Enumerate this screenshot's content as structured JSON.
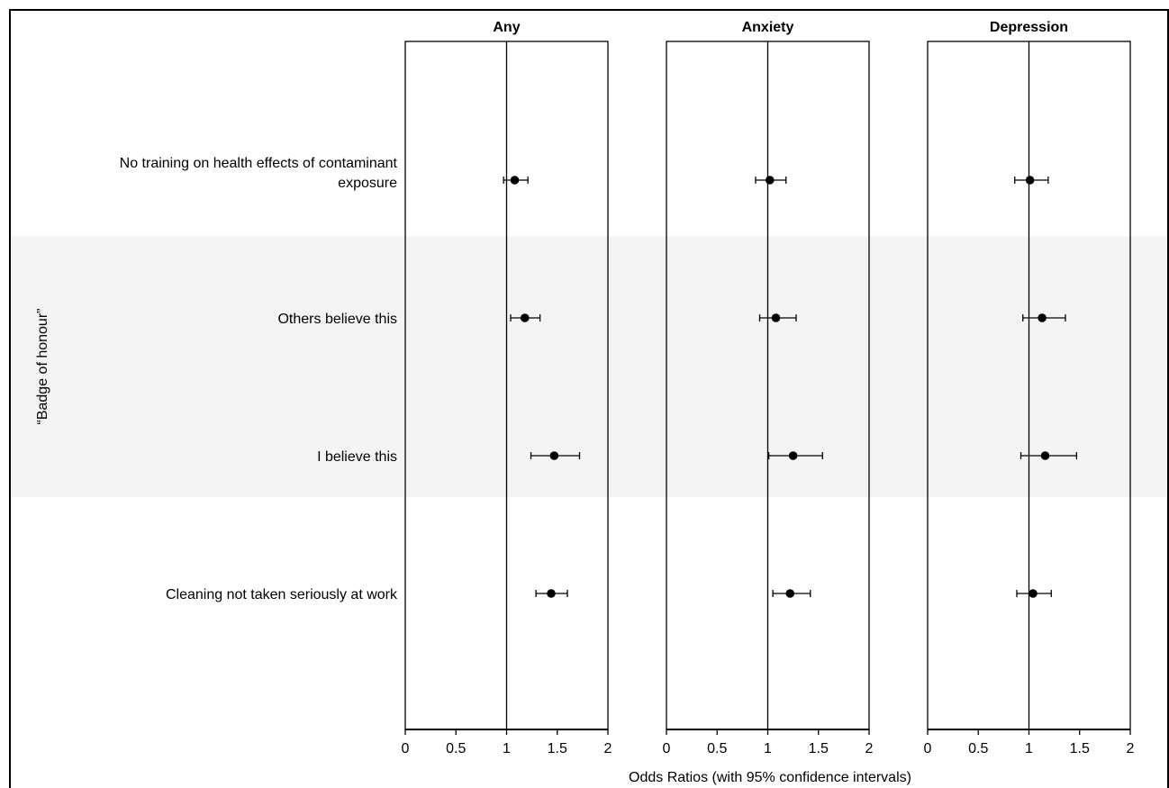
{
  "chart_data": {
    "type": "scatter",
    "xlabel": "Odds Ratios (with 95% confidence intervals)",
    "group_label": "“Badge of honour”",
    "xlim": [
      0,
      2
    ],
    "xticks": [
      "0",
      "0.5",
      "1",
      "1.5",
      "2"
    ],
    "reference_line": 1,
    "categories": [
      [
        "No training on health effects of contaminant",
        "exposure"
      ],
      [
        "Others believe this"
      ],
      [
        "I believe this"
      ],
      [
        "Cleaning not taken seriously at work"
      ]
    ],
    "panels": [
      {
        "title": "Any",
        "estimates": [
          1.08,
          1.18,
          1.47,
          1.44
        ],
        "ci_low": [
          0.97,
          1.04,
          1.24,
          1.29
        ],
        "ci_high": [
          1.21,
          1.33,
          1.72,
          1.6
        ]
      },
      {
        "title": "Anxiety",
        "estimates": [
          1.02,
          1.08,
          1.25,
          1.22
        ],
        "ci_low": [
          0.88,
          0.92,
          1.01,
          1.05
        ],
        "ci_high": [
          1.18,
          1.28,
          1.54,
          1.42
        ]
      },
      {
        "title": "Depression",
        "estimates": [
          1.01,
          1.13,
          1.16,
          1.04
        ],
        "ci_low": [
          0.86,
          0.94,
          0.92,
          0.88
        ],
        "ci_high": [
          1.19,
          1.36,
          1.47,
          1.22
        ]
      }
    ]
  }
}
